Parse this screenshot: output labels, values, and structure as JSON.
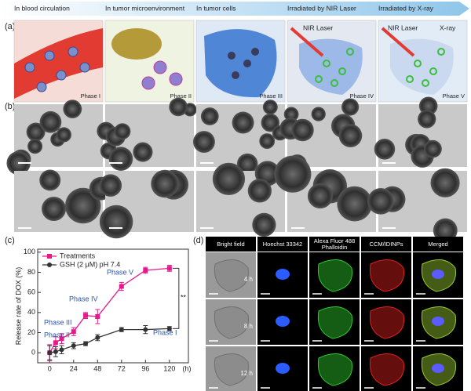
{
  "banner": [
    "In blood circulation",
    "In tumor microenvironment",
    "In tumor cells",
    "Irradiated by NIR Laser",
    "Irradiated by X-ray"
  ],
  "panel_a": {
    "label": "(a)",
    "phases": [
      "Phase I",
      "Phase II",
      "Phase III",
      "Phase IV",
      "Phase V"
    ],
    "texts": [
      "NIR Laser",
      "NIR Laser",
      "X-ray"
    ]
  },
  "panel_b": {
    "label": "(b)"
  },
  "panel_c": {
    "label": "(c)"
  },
  "chart_data": {
    "type": "line",
    "xlabel": "(h)",
    "ylabel": "Release rate of DOX (%)",
    "x": [
      0,
      6,
      12,
      24,
      36,
      48,
      72,
      96,
      120
    ],
    "xlim": [
      -12,
      139
    ],
    "ylim": [
      -10,
      103
    ],
    "xticks": [
      0,
      24,
      48,
      72,
      96,
      120
    ],
    "yticks": [
      0,
      20,
      40,
      60,
      80,
      100
    ],
    "legend": "upper left",
    "series": [
      {
        "name": "Treatments",
        "color": "#e5198b",
        "marker": "square",
        "values": [
          0,
          10,
          14,
          21,
          37,
          36,
          66,
          82,
          84
        ],
        "errors": [
          8,
          6,
          5,
          4,
          3,
          7,
          4,
          3,
          3
        ]
      },
      {
        "name": "GSH (2 μM) pH 7.4",
        "color": "#333333",
        "marker": "circle",
        "values": [
          0,
          1,
          3,
          7,
          9,
          15,
          23,
          23,
          24
        ],
        "errors": [
          7,
          5,
          4,
          3,
          2,
          3,
          2,
          4,
          2
        ]
      }
    ],
    "annotations": [
      "Phase I",
      "Phase II",
      "Phase III",
      "Phase IV",
      "Phase V",
      "**"
    ]
  },
  "panel_d": {
    "label": "(d)",
    "columns": [
      "Bright field",
      "Hoechst 33342",
      "Alexa Fluor 488 Phalloidin",
      "CCM/IDINPs",
      "Merged"
    ],
    "rows": [
      "4 h",
      "8 h",
      "12 h"
    ]
  }
}
